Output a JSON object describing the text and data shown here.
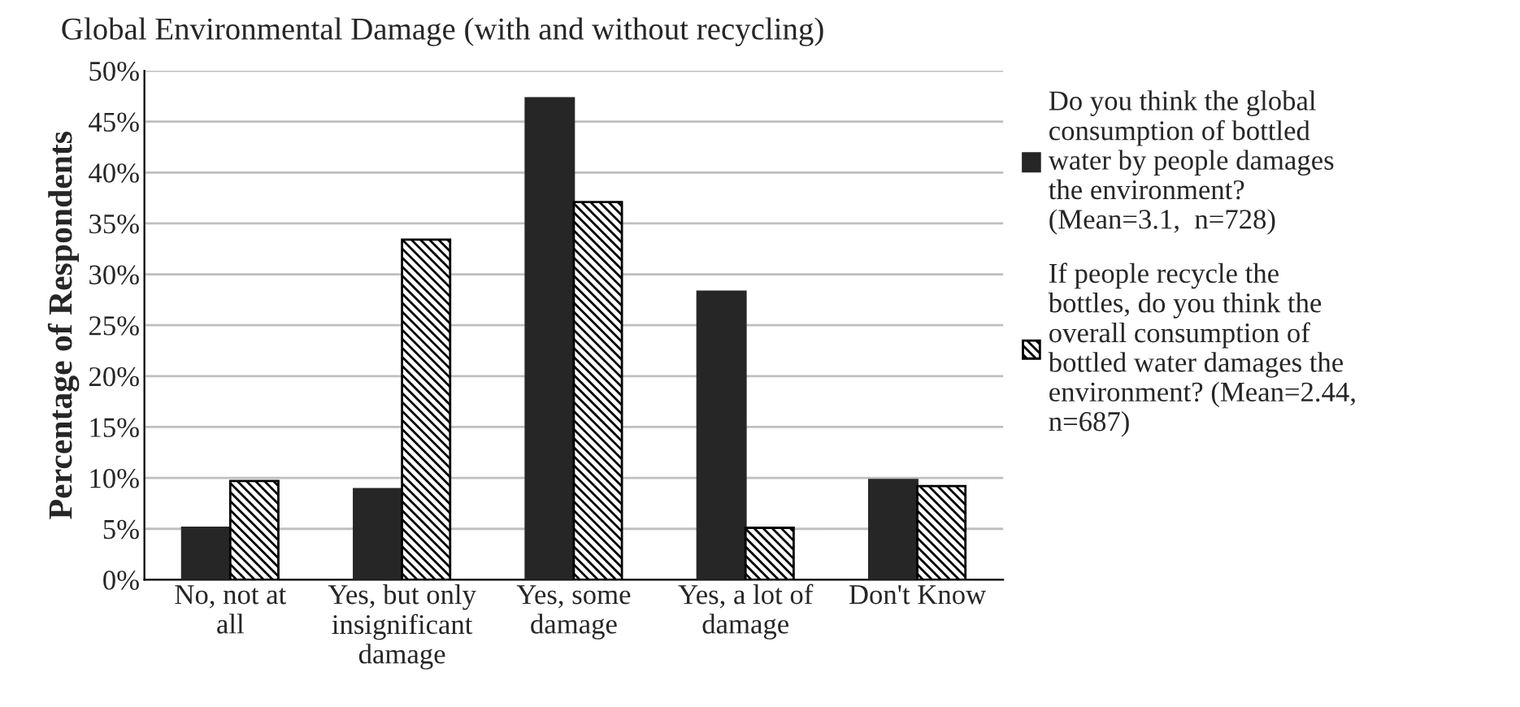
{
  "chart_data": {
    "type": "bar",
    "title": "Global Environmental Damage (with and without recycling)",
    "ylabel": "Percentage of Respondents",
    "categories": [
      "No, not at all",
      "Yes, but only insignificant damage",
      "Yes, some damage",
      "Yes, a lot of damage",
      "Don't Know"
    ],
    "series": [
      {
        "name": "Do you think the global consumption of bottled water by people damages the environment? (Mean=3.1,  n=728)",
        "color": "#262626",
        "values": [
          5.1,
          8.9,
          47.3,
          28.3,
          9.8
        ]
      },
      {
        "name": "If people recycle the bottles, do you think the overall consumption of bottled water damages the environment? (Mean=2.44,  n=687)",
        "color": "#000000",
        "values": [
          9.7,
          33.4,
          37.1,
          5.1,
          9.2
        ]
      }
    ],
    "ylim": [
      0,
      50
    ],
    "yticks": [
      {
        "value": 0,
        "label": "0%"
      },
      {
        "value": 5,
        "label": "5%"
      },
      {
        "value": 10,
        "label": "10%"
      },
      {
        "value": 15,
        "label": "15%"
      },
      {
        "value": 20,
        "label": "20%"
      },
      {
        "value": 25,
        "label": "25%"
      },
      {
        "value": 30,
        "label": "30%"
      },
      {
        "value": 35,
        "label": "35%"
      },
      {
        "value": 40,
        "label": "40%"
      },
      {
        "value": 45,
        "label": "45%"
      },
      {
        "value": 50,
        "label": "50%"
      }
    ],
    "grid": "y",
    "legend": "right"
  }
}
